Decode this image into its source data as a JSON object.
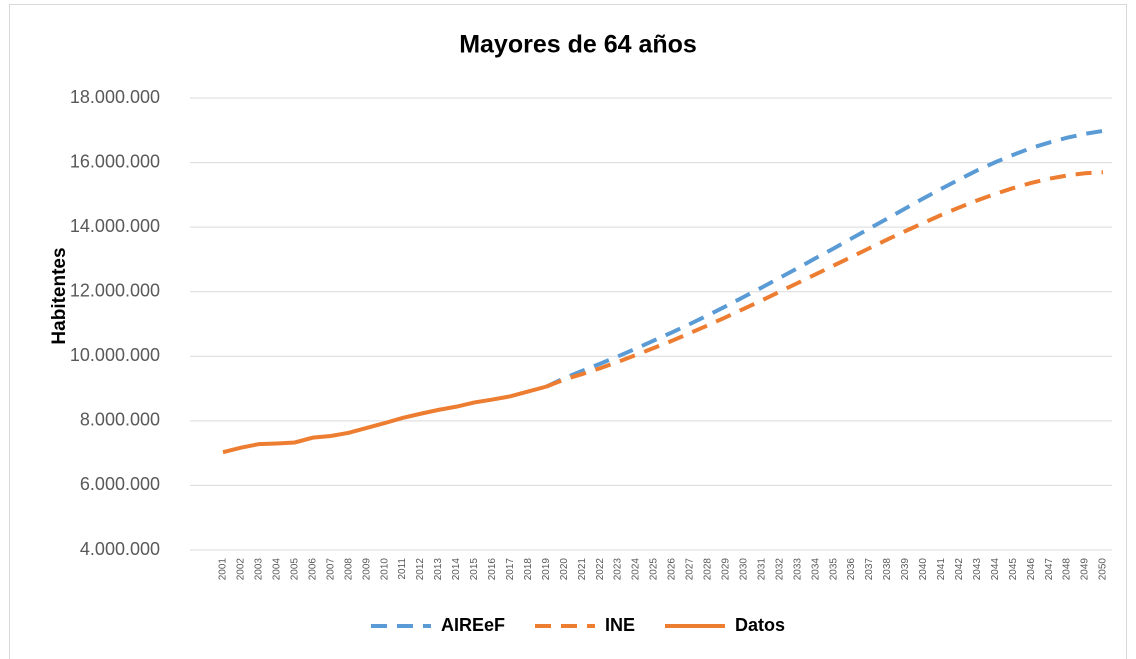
{
  "chart_data": {
    "type": "line",
    "title": "Mayores de 64 años",
    "y_label": "Habitentes",
    "categories": [
      "2001",
      "2002",
      "2003",
      "2004",
      "2005",
      "2006",
      "2007",
      "2008",
      "2009",
      "2010",
      "2011",
      "2012",
      "2013",
      "2014",
      "2015",
      "2016",
      "2017",
      "2018",
      "2019",
      "2020",
      "2021",
      "2022",
      "2023",
      "2024",
      "2025",
      "2026",
      "2027",
      "2028",
      "2029",
      "2030",
      "2031",
      "2032",
      "2033",
      "2034",
      "2035",
      "2036",
      "2037",
      "2038",
      "2039",
      "2040",
      "2041",
      "2042",
      "2043",
      "2044",
      "2045",
      "2046",
      "2047",
      "2048",
      "2049",
      "2050"
    ],
    "series": [
      {
        "name": "AIREeF",
        "color": "#5b9bd5",
        "dashed": true,
        "values": [
          null,
          null,
          null,
          null,
          null,
          null,
          null,
          null,
          null,
          null,
          null,
          null,
          null,
          null,
          null,
          null,
          null,
          null,
          9060000,
          9320000,
          9550000,
          9770000,
          10000000,
          10240000,
          10490000,
          10740000,
          11000000,
          11270000,
          11550000,
          11840000,
          12130000,
          12430000,
          12730000,
          13040000,
          13340000,
          13650000,
          13960000,
          14270000,
          14580000,
          14890000,
          15190000,
          15480000,
          15760000,
          16010000,
          16240000,
          16450000,
          16620000,
          16770000,
          16890000,
          16980000
        ]
      },
      {
        "name": "INE",
        "color": "#ed7d31",
        "dashed": true,
        "values": [
          null,
          null,
          null,
          null,
          null,
          null,
          null,
          null,
          null,
          null,
          null,
          null,
          null,
          null,
          null,
          null,
          null,
          null,
          9060000,
          9280000,
          9450000,
          9630000,
          9830000,
          10040000,
          10260000,
          10480000,
          10720000,
          10960000,
          11210000,
          11470000,
          11730000,
          12000000,
          12270000,
          12540000,
          12810000,
          13080000,
          13350000,
          13620000,
          13880000,
          14130000,
          14380000,
          14610000,
          14830000,
          15030000,
          15210000,
          15370000,
          15500000,
          15600000,
          15670000,
          15700000
        ]
      },
      {
        "name": "Datos",
        "color": "#ed7d31",
        "dashed": false,
        "values": [
          7030000,
          7170000,
          7280000,
          7300000,
          7330000,
          7480000,
          7530000,
          7630000,
          7780000,
          7930000,
          8090000,
          8220000,
          8340000,
          8440000,
          8570000,
          8660000,
          8760000,
          8910000,
          9060000,
          null,
          null,
          null,
          null,
          null,
          null,
          null,
          null,
          null,
          null,
          null,
          null,
          null,
          null,
          null,
          null,
          null,
          null,
          null,
          null,
          null,
          null,
          null,
          null,
          null,
          null,
          null,
          null,
          null,
          null,
          null
        ]
      }
    ],
    "ylim": [
      4000000,
      18000000
    ],
    "yticks": [
      {
        "value": 4000000,
        "label": "4.000.000"
      },
      {
        "value": 6000000,
        "label": "6.000.000"
      },
      {
        "value": 8000000,
        "label": "8.000.000"
      },
      {
        "value": 10000000,
        "label": "10.000.000"
      },
      {
        "value": 12000000,
        "label": "12.000.000"
      },
      {
        "value": 14000000,
        "label": "14.000.000"
      },
      {
        "value": 16000000,
        "label": "16.000.000"
      },
      {
        "value": 18000000,
        "label": "18.000.000"
      }
    ],
    "grid": true,
    "legend": "bottom"
  }
}
